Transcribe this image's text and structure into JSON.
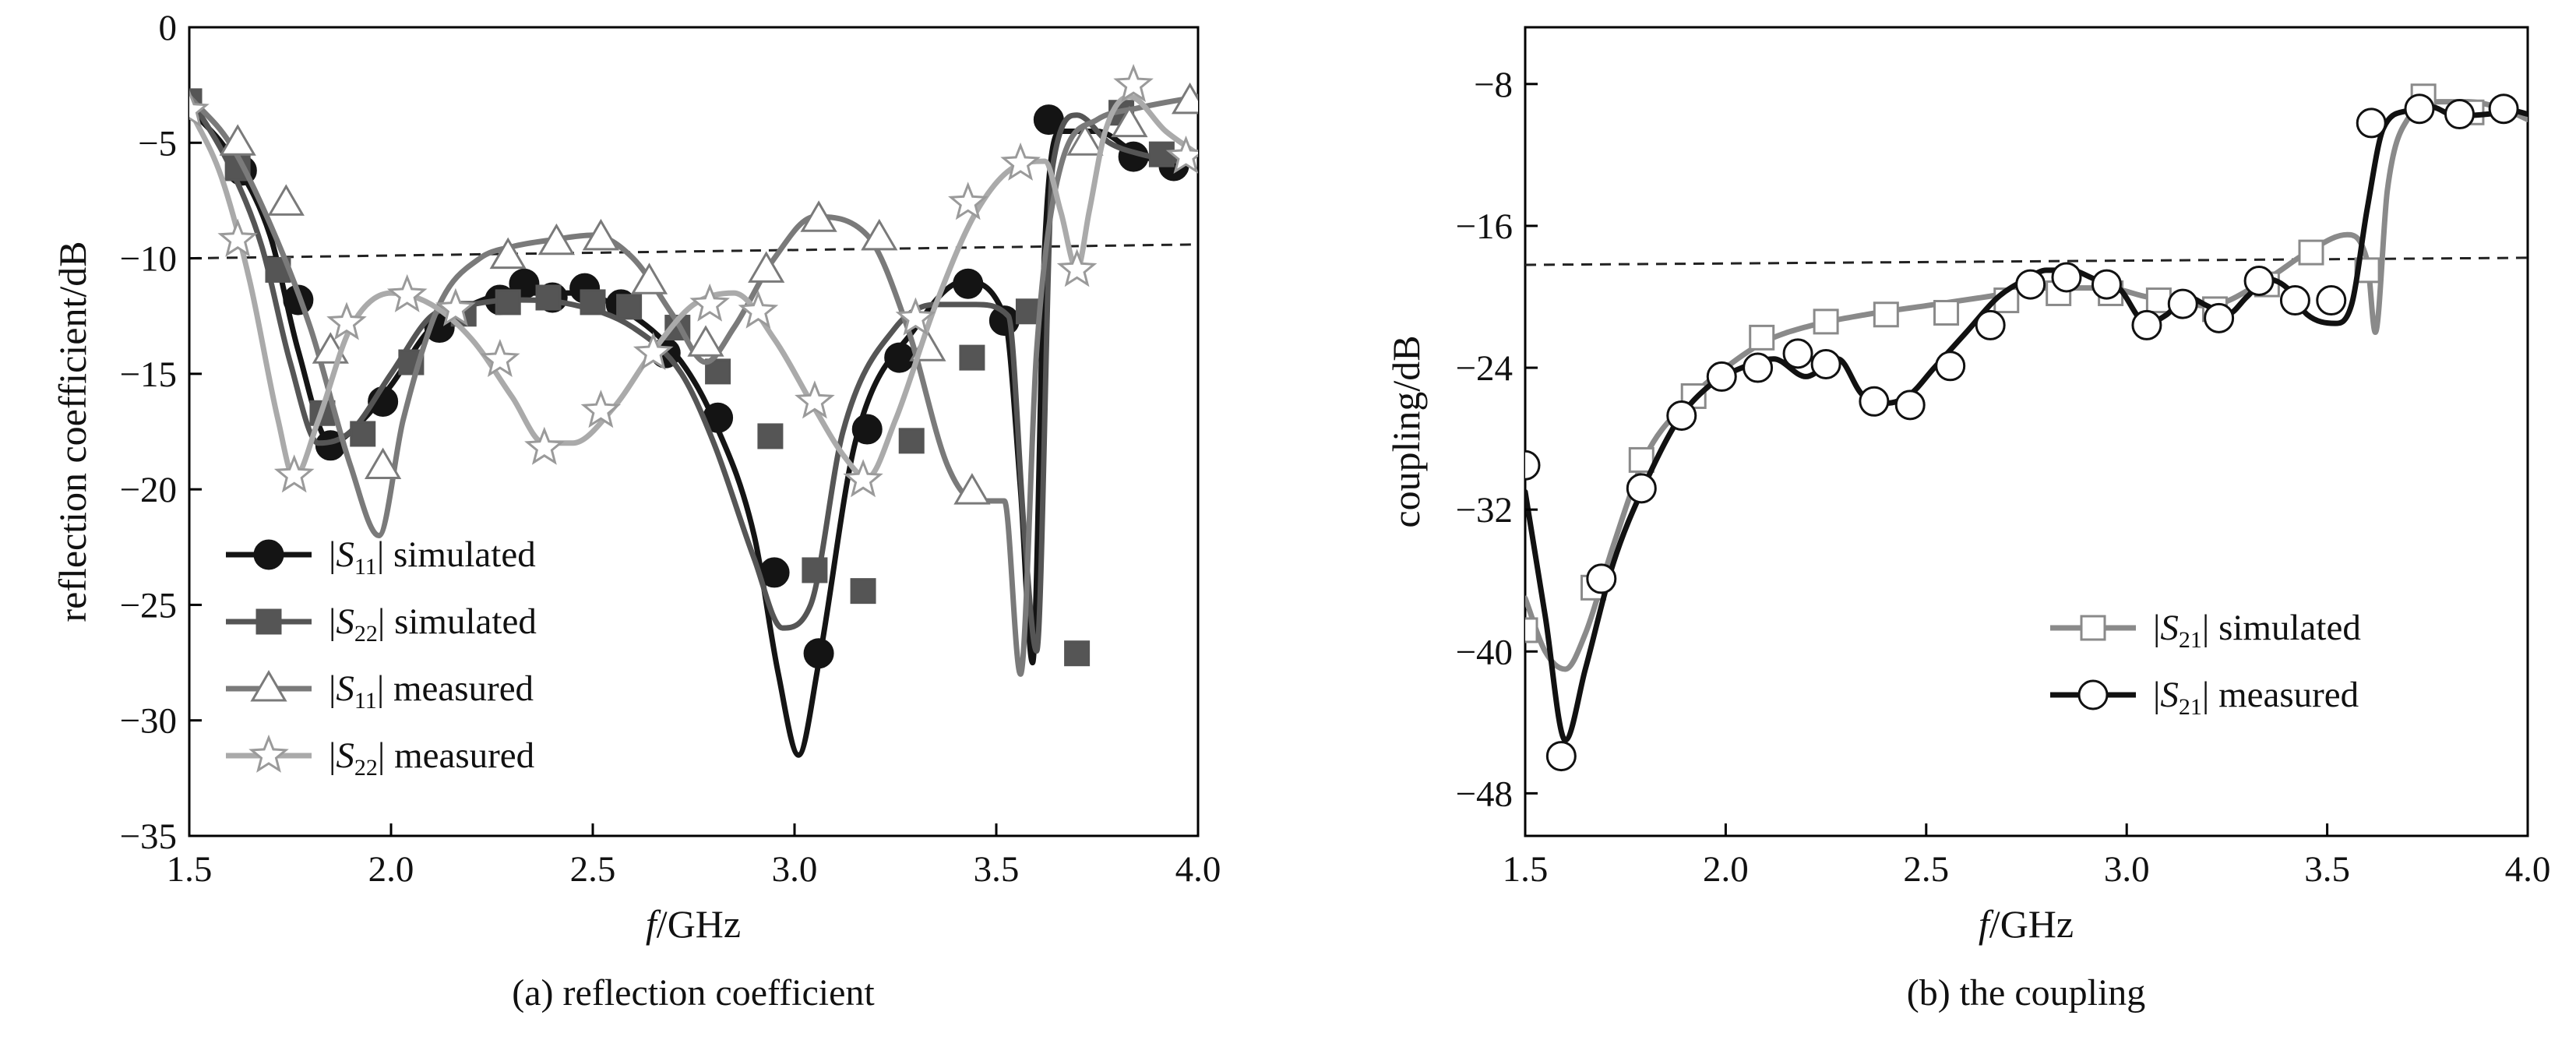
{
  "chart_data": [
    {
      "type": "line",
      "caption": "(a) reflection coefficient",
      "xlabel_italic": "f",
      "xlabel_rest": "/GHz",
      "ylabel": "reflection coefficient/dB",
      "xlim": [
        1.5,
        4.0
      ],
      "ylim": [
        -35,
        0
      ],
      "xticks": [
        "1.5",
        "2.0",
        "2.5",
        "3.0",
        "3.5",
        "4.0"
      ],
      "xtick_values": [
        1.5,
        2.0,
        2.5,
        3.0,
        3.5,
        4.0
      ],
      "yticks": [
        "0",
        "−5",
        "−10",
        "−15",
        "−20",
        "−25",
        "−30",
        "−35"
      ],
      "ytick_values": [
        0,
        -5,
        -10,
        -15,
        -20,
        -25,
        -30,
        -35
      ],
      "grid": false,
      "legend_position": "bottom-left",
      "reference_line": {
        "style": "dashed",
        "x": [
          1.5,
          4.0
        ],
        "y": [
          -10.0,
          -9.4
        ]
      },
      "series": [
        {
          "legend_pre": "|",
          "legend_sym": "S",
          "legend_sub": "11",
          "legend_post": "| simulated",
          "marker": "circle-filled",
          "color": "#141414",
          "marker_fill": "#141414",
          "marker_stroke": "#141414",
          "x": [
            1.5,
            1.6,
            1.7,
            1.77,
            1.85,
            1.93,
            2.0,
            2.1,
            2.2,
            2.3,
            2.45,
            2.6,
            2.72,
            2.8,
            2.9,
            2.96,
            3.01,
            3.06,
            3.15,
            3.3,
            3.42,
            3.52,
            3.56,
            3.59,
            3.62,
            3.66,
            3.75,
            3.85,
            3.95
          ],
          "y": [
            -3.5,
            -5.5,
            -9.0,
            -14.0,
            -18.0,
            -17.0,
            -15.5,
            -13.0,
            -12.0,
            -11.5,
            -11.5,
            -12.5,
            -14.5,
            -17.0,
            -22.0,
            -28.0,
            -31.5,
            -27.5,
            -18.0,
            -13.0,
            -11.0,
            -12.5,
            -20.0,
            -27.5,
            -9.5,
            -4.5,
            -4.5,
            -5.5,
            -6.0
          ],
          "marker_x": [
            1.63,
            1.77,
            1.85,
            1.98,
            2.12,
            2.27,
            2.33,
            2.4,
            2.48,
            2.57,
            2.68,
            2.81,
            2.95,
            3.06,
            3.18,
            3.26,
            3.43,
            3.52,
            3.63,
            3.84,
            3.94
          ],
          "marker_y": [
            -6.2,
            -11.8,
            -18.1,
            -16.2,
            -13.0,
            -11.8,
            -11.1,
            -11.7,
            -11.3,
            -12.0,
            -14.1,
            -16.9,
            -23.6,
            -27.1,
            -17.4,
            -14.3,
            -11.1,
            -12.7,
            -4.0,
            -5.6,
            -6.0
          ]
        },
        {
          "legend_pre": "|",
          "legend_sym": "S",
          "legend_sub": "22",
          "legend_post": "| simulated",
          "marker": "square-filled",
          "color": "#555555",
          "marker_fill": "#555555",
          "marker_stroke": "#555555",
          "x": [
            1.5,
            1.6,
            1.68,
            1.75,
            1.82,
            1.9,
            2.0,
            2.1,
            2.2,
            2.3,
            2.45,
            2.6,
            2.72,
            2.8,
            2.9,
            2.97,
            3.04,
            3.12,
            3.25,
            3.35,
            3.45,
            3.53,
            3.57,
            3.6,
            3.64,
            3.7,
            3.78,
            3.86,
            3.95
          ],
          "y": [
            -3.0,
            -6.0,
            -9.5,
            -14.5,
            -18.0,
            -17.5,
            -15.0,
            -12.5,
            -12.0,
            -11.8,
            -12.0,
            -13.0,
            -15.0,
            -18.0,
            -23.0,
            -26.0,
            -25.0,
            -17.5,
            -13.0,
            -12.0,
            -12.0,
            -12.5,
            -22.0,
            -27.0,
            -6.0,
            -3.8,
            -5.0,
            -5.5,
            -5.8
          ],
          "marker_x": [
            1.5,
            1.62,
            1.72,
            1.83,
            1.93,
            2.05,
            2.18,
            2.29,
            2.39,
            2.5,
            2.59,
            2.71,
            2.81,
            2.94,
            3.05,
            3.17,
            3.29,
            3.44,
            3.58,
            3.7,
            3.81,
            3.91
          ],
          "marker_y": [
            -3.2,
            -6.1,
            -10.5,
            -16.7,
            -17.6,
            -14.5,
            -12.4,
            -11.9,
            -11.7,
            -11.9,
            -12.1,
            -13.0,
            -14.9,
            -17.7,
            -23.5,
            -24.4,
            -17.9,
            -14.3,
            -12.3,
            -27.1,
            -3.7,
            -5.5
          ]
        },
        {
          "legend_pre": "|",
          "legend_sym": "S",
          "legend_sub": "11",
          "legend_post": "| measured",
          "marker": "triangle-open",
          "color": "#7a7a7a",
          "marker_fill": "#ffffff",
          "marker_stroke": "#7a7a7a",
          "x": [
            1.5,
            1.6,
            1.7,
            1.8,
            1.9,
            1.97,
            2.03,
            2.12,
            2.22,
            2.3,
            2.4,
            2.5,
            2.6,
            2.7,
            2.78,
            2.85,
            2.95,
            3.05,
            3.18,
            3.28,
            3.38,
            3.45,
            3.52,
            3.56,
            3.6,
            3.66,
            3.75,
            3.85,
            4.0
          ],
          "y": [
            -3.0,
            -5.0,
            -8.5,
            -13.0,
            -19.0,
            -22.0,
            -17.0,
            -12.0,
            -10.0,
            -9.5,
            -9.2,
            -9.0,
            -10.0,
            -12.5,
            -14.5,
            -13.0,
            -10.0,
            -8.2,
            -9.0,
            -13.0,
            -19.0,
            -20.5,
            -20.5,
            -28.0,
            -14.0,
            -6.0,
            -4.0,
            -3.5,
            -3.0
          ],
          "marker_x": [
            1.62,
            1.74,
            1.85,
            1.98,
            2.29,
            2.41,
            2.52,
            2.64,
            2.78,
            2.93,
            3.06,
            3.21,
            3.33,
            3.44,
            3.72,
            3.83,
            3.98
          ],
          "marker_y": [
            -5.0,
            -7.6,
            -14.0,
            -19.0,
            -9.9,
            -9.3,
            -9.1,
            -11.0,
            -13.7,
            -10.5,
            -8.3,
            -9.1,
            -13.9,
            -20.1,
            -5.0,
            -4.2,
            -3.2
          ]
        },
        {
          "legend_pre": "|",
          "legend_sym": "S",
          "legend_sub": "22",
          "legend_post": "| measured",
          "marker": "star-open",
          "color": "#aaaaaa",
          "marker_fill": "#ffffff",
          "marker_stroke": "#9a9a9a",
          "x": [
            1.5,
            1.58,
            1.65,
            1.72,
            1.76,
            1.82,
            1.9,
            2.0,
            2.1,
            2.2,
            2.3,
            2.38,
            2.45,
            2.55,
            2.65,
            2.75,
            2.85,
            2.95,
            3.05,
            3.12,
            3.18,
            3.25,
            3.35,
            3.45,
            3.55,
            3.62,
            3.66,
            3.7,
            3.73,
            3.77,
            3.83,
            3.92,
            4.0
          ],
          "y": [
            -3.5,
            -6.5,
            -11.0,
            -17.0,
            -19.5,
            -17.0,
            -13.0,
            -11.5,
            -12.0,
            -13.5,
            -16.0,
            -18.0,
            -18.0,
            -16.5,
            -14.0,
            -12.0,
            -11.5,
            -13.5,
            -16.5,
            -18.5,
            -19.5,
            -17.0,
            -12.0,
            -8.0,
            -6.0,
            -5.8,
            -8.0,
            -10.5,
            -8.0,
            -4.5,
            -3.0,
            -4.5,
            -5.5
          ],
          "marker_x": [
            1.5,
            1.62,
            1.76,
            1.89,
            2.04,
            2.16,
            2.27,
            2.38,
            2.52,
            2.65,
            2.79,
            2.91,
            3.05,
            3.17,
            3.3,
            3.43,
            3.56,
            3.7,
            3.84,
            3.97
          ],
          "marker_y": [
            -3.6,
            -9.2,
            -19.4,
            -12.8,
            -11.6,
            -12.2,
            -14.4,
            -18.2,
            -16.6,
            -14.1,
            -12.0,
            -12.3,
            -16.2,
            -19.6,
            -12.6,
            -7.6,
            -5.9,
            -10.5,
            -2.5,
            -5.6
          ]
        }
      ]
    },
    {
      "type": "line",
      "caption": "(b) the coupling",
      "xlabel_italic": "f",
      "xlabel_rest": "/GHz",
      "ylabel": "coupling/dB",
      "xlim": [
        1.5,
        4.0
      ],
      "ylim": [
        -50.4,
        -4.8
      ],
      "xticks": [
        "1.5",
        "2.0",
        "2.5",
        "3.0",
        "3.5",
        "4.0"
      ],
      "xtick_values": [
        1.5,
        2.0,
        2.5,
        3.0,
        3.5,
        4.0
      ],
      "yticks": [
        "−8",
        "−16",
        "−24",
        "−32",
        "−40",
        "−48"
      ],
      "ytick_values": [
        -8,
        -16,
        -24,
        -32,
        -40,
        -48
      ],
      "grid": false,
      "legend_position": "bottom-right",
      "reference_line": {
        "style": "dashed",
        "x": [
          1.5,
          4.0
        ],
        "y": [
          -18.2,
          -17.8
        ]
      },
      "series": [
        {
          "legend_pre": "|",
          "legend_sym": "S",
          "legend_sub": "21",
          "legend_post": "| simulated",
          "marker": "square-open",
          "color": "#8a8a8a",
          "marker_fill": "#ffffff",
          "marker_stroke": "#8a8a8a",
          "x": [
            1.5,
            1.55,
            1.6,
            1.65,
            1.72,
            1.8,
            1.9,
            2.0,
            2.1,
            2.2,
            2.35,
            2.5,
            2.65,
            2.8,
            2.95,
            3.05,
            3.2,
            3.35,
            3.45,
            3.55,
            3.6,
            3.62,
            3.65,
            3.7,
            3.78,
            3.85,
            3.95,
            4.0
          ],
          "y": [
            -37.0,
            -40.0,
            -41.0,
            -39.0,
            -34.0,
            -29.0,
            -26.0,
            -24.0,
            -22.5,
            -21.7,
            -21.0,
            -20.5,
            -20.0,
            -19.5,
            -19.5,
            -20.0,
            -20.5,
            -19.0,
            -17.5,
            -16.5,
            -18.0,
            -22.0,
            -14.0,
            -10.0,
            -9.0,
            -9.0,
            -9.5,
            -10.0
          ],
          "marker_x": [
            1.5,
            1.67,
            1.79,
            1.92,
            2.09,
            2.25,
            2.4,
            2.55,
            2.7,
            2.83,
            2.96,
            3.08,
            3.22,
            3.35,
            3.46,
            3.6,
            3.74,
            3.86
          ],
          "marker_y": [
            -38.8,
            -36.4,
            -29.2,
            -25.6,
            -22.3,
            -21.4,
            -21.0,
            -20.9,
            -20.2,
            -19.8,
            -19.8,
            -20.2,
            -20.7,
            -19.3,
            -17.5,
            -18.5,
            -8.7,
            -9.6
          ]
        },
        {
          "legend_pre": "|",
          "legend_sym": "S",
          "legend_sub": "21",
          "legend_post": "| measured",
          "marker": "circle-open",
          "color": "#111111",
          "marker_fill": "#ffffff",
          "marker_stroke": "#111111",
          "x": [
            1.5,
            1.55,
            1.6,
            1.65,
            1.72,
            1.8,
            1.88,
            1.96,
            2.04,
            2.12,
            2.2,
            2.28,
            2.34,
            2.4,
            2.46,
            2.52,
            2.6,
            2.68,
            2.75,
            2.8,
            2.86,
            2.92,
            2.98,
            3.05,
            3.1,
            3.15,
            3.2,
            3.25,
            3.3,
            3.35,
            3.4,
            3.45,
            3.52,
            3.56,
            3.6,
            3.64,
            3.7,
            3.76,
            3.82,
            3.9,
            3.96,
            4.0
          ],
          "y": [
            -31.0,
            -38.0,
            -45.0,
            -41.0,
            -35.0,
            -30.5,
            -27.0,
            -25.0,
            -24.0,
            -23.5,
            -24.5,
            -23.5,
            -25.5,
            -26.0,
            -25.5,
            -24.0,
            -22.0,
            -20.0,
            -19.0,
            -18.5,
            -18.5,
            -19.0,
            -19.5,
            -21.5,
            -21.0,
            -20.0,
            -20.5,
            -21.0,
            -20.0,
            -19.0,
            -19.5,
            -21.0,
            -21.5,
            -20.5,
            -15.0,
            -10.5,
            -9.5,
            -9.3,
            -9.8,
            -9.7,
            -9.5,
            -9.7
          ],
          "marker_x": [
            1.5,
            1.59,
            1.69,
            1.79,
            1.89,
            1.99,
            2.08,
            2.18,
            2.25,
            2.37,
            2.46,
            2.56,
            2.66,
            2.76,
            2.85,
            2.95,
            3.05,
            3.14,
            3.23,
            3.33,
            3.42,
            3.51,
            3.61,
            3.73,
            3.83,
            3.94
          ],
          "marker_y": [
            -29.5,
            -45.9,
            -35.9,
            -30.8,
            -26.7,
            -24.5,
            -24.0,
            -23.2,
            -23.8,
            -25.9,
            -26.1,
            -23.9,
            -21.6,
            -19.3,
            -18.9,
            -19.3,
            -21.6,
            -20.4,
            -21.2,
            -19.1,
            -20.2,
            -20.2,
            -10.2,
            -9.4,
            -9.7,
            -9.4
          ]
        }
      ]
    }
  ]
}
